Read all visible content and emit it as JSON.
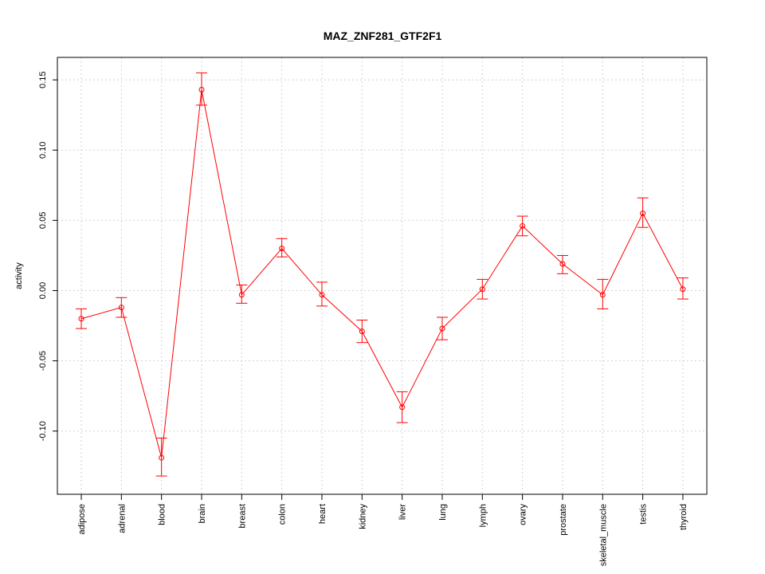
{
  "chart_data": {
    "type": "line",
    "title": "MAZ_ZNF281_GTF2F1",
    "xlabel": "",
    "ylabel": "activity",
    "ylim": [
      -0.145,
      0.166
    ],
    "yticks": [
      -0.1,
      -0.05,
      0.0,
      0.05,
      0.1,
      0.15
    ],
    "ytick_labels": [
      "-0.10",
      "-0.05",
      "0.00",
      "0.05",
      "0.10",
      "0.15"
    ],
    "categories": [
      "adipose",
      "adrenal",
      "blood",
      "brain",
      "breast",
      "colon",
      "heart",
      "kidney",
      "liver",
      "lung",
      "lymph",
      "ovary",
      "prostate",
      "skeletal_muscle",
      "testis",
      "thyroid"
    ],
    "series": [
      {
        "values": [
          -0.02,
          -0.012,
          -0.119,
          0.143,
          -0.003,
          0.03,
          -0.003,
          -0.029,
          -0.083,
          -0.027,
          0.001,
          0.046,
          0.019,
          -0.003,
          0.055,
          0.001
        ],
        "upper": [
          -0.013,
          -0.005,
          -0.105,
          0.155,
          0.004,
          0.037,
          0.006,
          -0.021,
          -0.072,
          -0.019,
          0.008,
          0.053,
          0.025,
          0.008,
          0.066,
          0.009
        ],
        "lower": [
          -0.027,
          -0.019,
          -0.132,
          0.132,
          -0.009,
          0.024,
          -0.011,
          -0.037,
          -0.094,
          -0.035,
          -0.006,
          0.039,
          0.012,
          -0.013,
          0.045,
          -0.006
        ]
      }
    ],
    "grid": true,
    "colors": {
      "series": "#ff0000",
      "grid": "#d3d3d3",
      "axis": "#000000"
    }
  }
}
